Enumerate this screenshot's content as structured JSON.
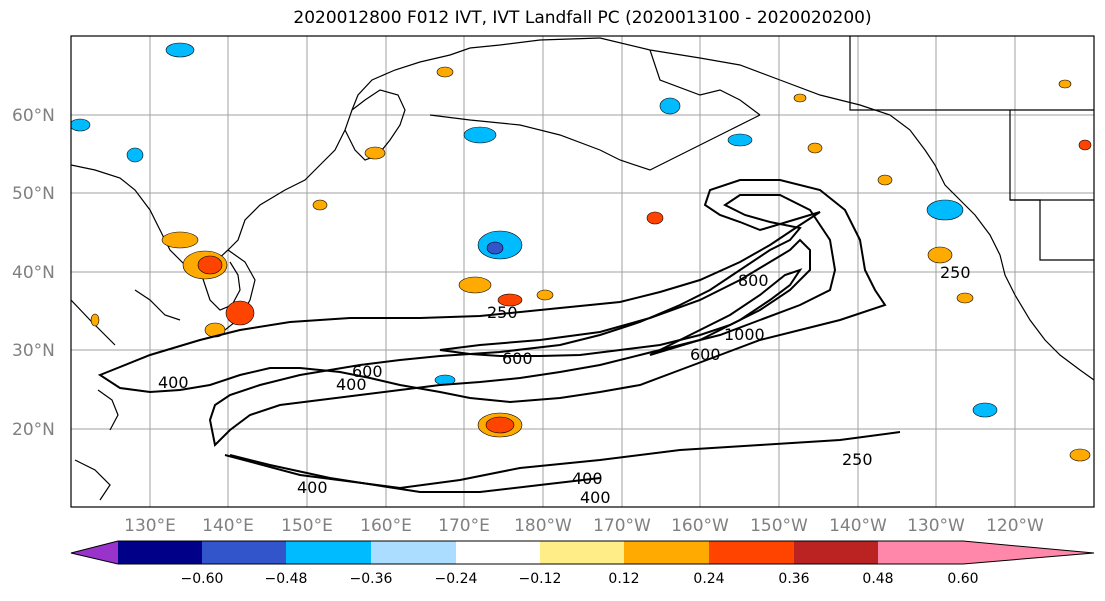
{
  "figure": {
    "title": "2020012800 F012 IVT, IVT Landfall PC (2020013100 - 2020020200)"
  },
  "map": {
    "lat_labels": [
      "60°N",
      "50°N",
      "40°N",
      "30°N",
      "20°N"
    ],
    "lon_labels": [
      "130°E",
      "140°E",
      "150°E",
      "160°E",
      "170°E",
      "180°W",
      "170°W",
      "160°W",
      "150°W",
      "140°W",
      "130°W",
      "120°W"
    ],
    "contour_labels": [
      "250",
      "250",
      "250",
      "400",
      "400",
      "400",
      "400",
      "400",
      "600",
      "600",
      "600",
      "800",
      "1000"
    ],
    "contour_color": "#000000",
    "coast_color": "#000000",
    "grid_color": "#808080"
  },
  "colorbar": {
    "colors": [
      "#9933cc",
      "#000088",
      "#3355cc",
      "#00bbff",
      "#aaddff",
      "#ffffff",
      "#ffee88",
      "#ffaa00",
      "#ff4400",
      "#bb2222",
      "#ff88aa"
    ],
    "ticks": [
      "−0.60",
      "−0.48",
      "−0.36",
      "−0.24",
      "−0.12",
      "0.12",
      "0.24",
      "0.36",
      "0.48",
      "0.60"
    ]
  }
}
